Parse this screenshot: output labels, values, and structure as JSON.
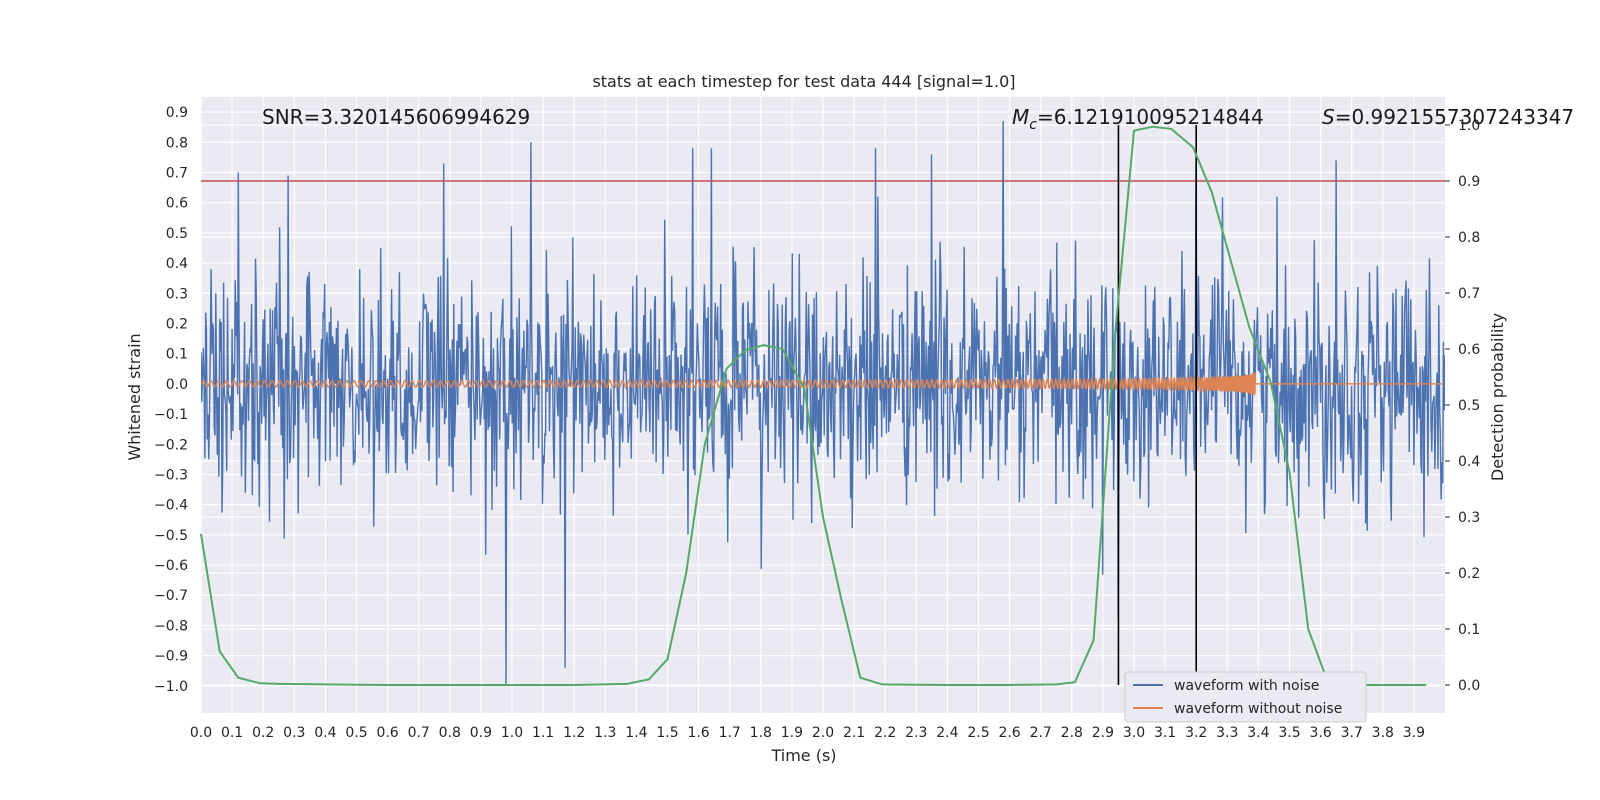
{
  "chart_data": {
    "type": "line",
    "title": "stats at each timestep for test data 444 [signal=1.0]",
    "xlabel": "Time (s)",
    "ylabel": "Whitened strain",
    "ylabel_right": "Detection probability",
    "xlim": [
      0.0,
      4.0
    ],
    "ylim": [
      -1.09,
      0.95
    ],
    "ylim_right": [
      -0.05,
      1.05
    ],
    "x_ticks": [
      "0.0",
      "0.1",
      "0.2",
      "0.3",
      "0.4",
      "0.5",
      "0.6",
      "0.7",
      "0.8",
      "0.9",
      "1.0",
      "1.1",
      "1.2",
      "1.3",
      "1.4",
      "1.5",
      "1.6",
      "1.7",
      "1.8",
      "1.9",
      "2.0",
      "2.1",
      "2.2",
      "2.3",
      "2.4",
      "2.5",
      "2.6",
      "2.7",
      "2.8",
      "2.9",
      "3.0",
      "3.1",
      "3.2",
      "3.3",
      "3.4",
      "3.5",
      "3.6",
      "3.7",
      "3.8",
      "3.9"
    ],
    "y_ticks": [
      "-1.0",
      "-0.9",
      "-0.8",
      "-0.7",
      "-0.6",
      "-0.5",
      "-0.4",
      "-0.3",
      "-0.2",
      "-0.1",
      "0.0",
      "0.1",
      "0.2",
      "0.3",
      "0.4",
      "0.5",
      "0.6",
      "0.7",
      "0.8",
      "0.9"
    ],
    "y_ticks_right": [
      "0.0",
      "0.1",
      "0.2",
      "0.3",
      "0.4",
      "0.5",
      "0.6",
      "0.7",
      "0.8",
      "0.9",
      "1.0"
    ],
    "annotations": {
      "snr": "SNR=3.320145606994629",
      "mc_prefix": "M",
      "mc_sub": "c",
      "mc_value": "=6.121910095214844",
      "s_prefix": "S",
      "s_value": "=0.9921557307243347"
    },
    "threshold_prob": 0.9,
    "vertical_lines_x": [
      2.95,
      3.2
    ],
    "noise_envelope": {
      "spikes": [
        {
          "x": 0.12,
          "y": 0.7
        },
        {
          "x": 0.28,
          "y": 0.69
        },
        {
          "x": 0.78,
          "y": 0.73
        },
        {
          "x": 1.06,
          "y": 0.8
        },
        {
          "x": 0.98,
          "y": -1.0
        },
        {
          "x": 1.17,
          "y": -0.94
        },
        {
          "x": 1.58,
          "y": 0.78
        },
        {
          "x": 1.64,
          "y": 0.78
        },
        {
          "x": 2.17,
          "y": 0.78
        },
        {
          "x": 2.35,
          "y": 0.76
        },
        {
          "x": 2.58,
          "y": 0.87
        },
        {
          "x": 3.2,
          "y": 0.73
        },
        {
          "x": 3.65,
          "y": 0.74
        },
        {
          "x": 2.95,
          "y": -0.78
        }
      ]
    },
    "series": [
      {
        "name": "waveform with noise",
        "color": "#4c72b0"
      },
      {
        "name": "waveform without noise",
        "color": "#dd8452"
      },
      {
        "color": "#55a868",
        "axis": "right",
        "x": [
          0.0,
          0.06,
          0.12,
          0.19,
          0.25,
          0.4,
          0.6,
          0.8,
          1.0,
          1.2,
          1.37,
          1.44,
          1.5,
          1.56,
          1.62,
          1.69,
          1.75,
          1.81,
          1.87,
          1.94,
          2.0,
          2.06,
          2.12,
          2.19,
          2.4,
          2.6,
          2.75,
          2.81,
          2.87,
          2.94,
          3.0,
          3.06,
          3.12,
          3.19,
          3.25,
          3.31,
          3.37,
          3.44,
          3.5,
          3.56,
          3.62,
          3.69,
          3.8,
          3.94
        ],
        "y": [
          0.27,
          0.06,
          0.013,
          0.003,
          0.002,
          0.001,
          0.0,
          0.0,
          0.0,
          0.0,
          0.002,
          0.01,
          0.046,
          0.2,
          0.43,
          0.565,
          0.598,
          0.607,
          0.6,
          0.53,
          0.3,
          0.15,
          0.013,
          0.001,
          0.0,
          0.0,
          0.001,
          0.005,
          0.08,
          0.63,
          0.99,
          0.997,
          0.993,
          0.96,
          0.88,
          0.76,
          0.64,
          0.54,
          0.38,
          0.1,
          0.01,
          0.0,
          0.0,
          0.0
        ]
      }
    ],
    "colors": {
      "background": "#eaeaf2",
      "grid": "#ffffff",
      "threshold": "#c44e52",
      "vline": "#000000"
    },
    "legend_loc": "lower right"
  }
}
